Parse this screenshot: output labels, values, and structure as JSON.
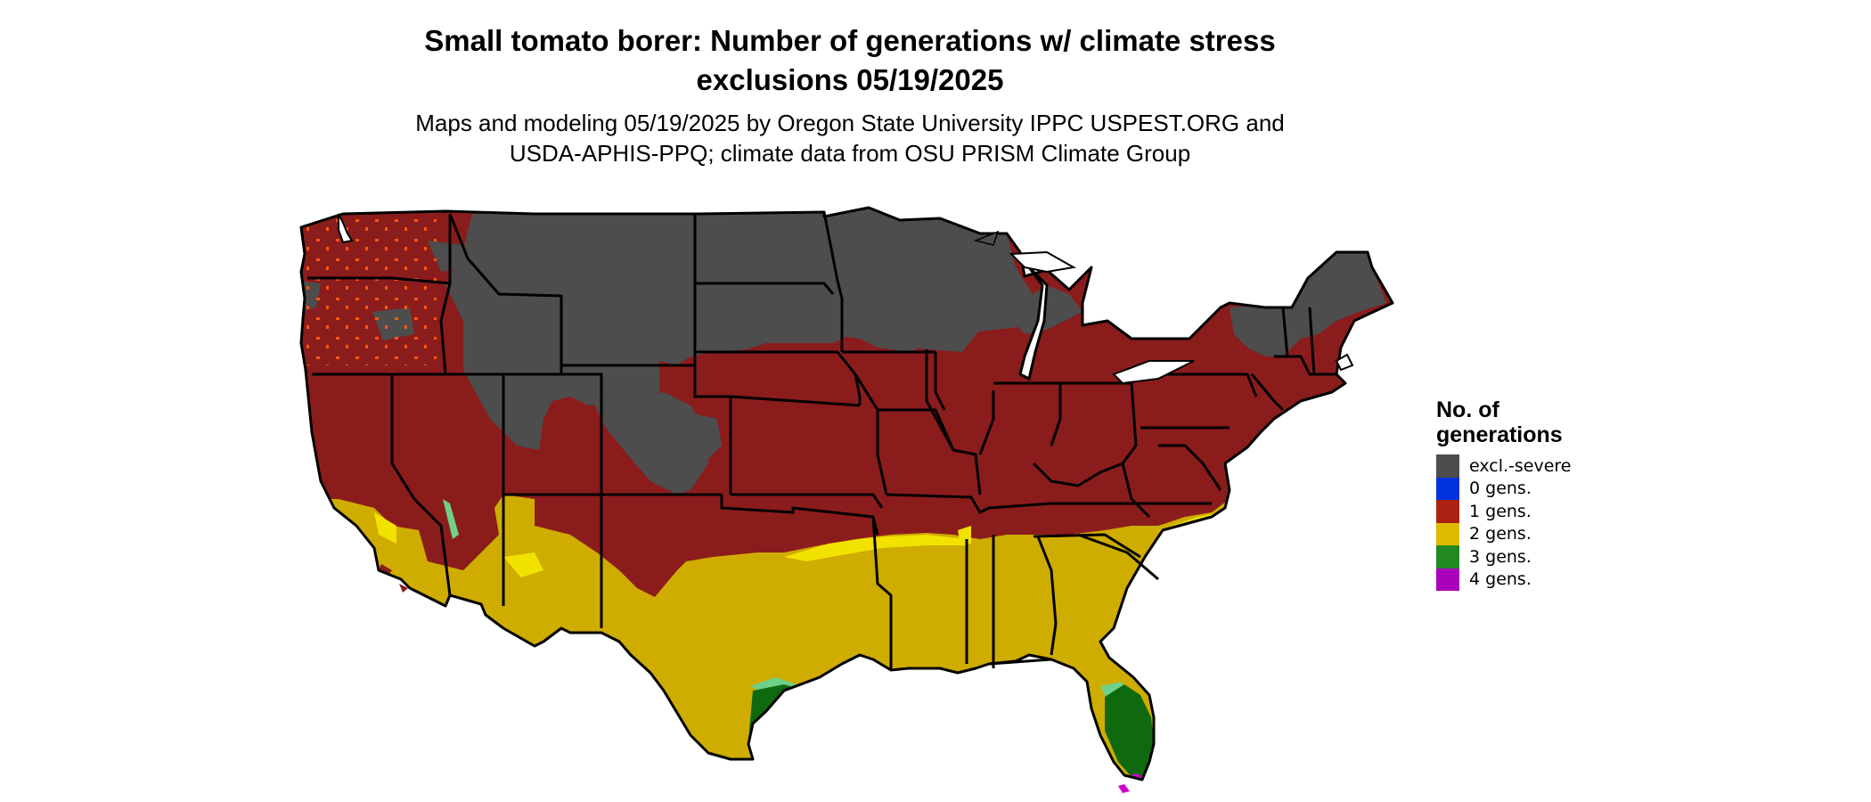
{
  "title": {
    "line1": "Small tomato borer: Number of generations w/ climate stress",
    "line2": "exclusions 05/19/2025"
  },
  "subtitle": {
    "line1": "Maps and modeling 05/19/2025 by Oregon State University IPPC USPEST.ORG and",
    "line2": "USDA-APHIS-PPQ; climate data from OSU PRISM Climate Group"
  },
  "legend": {
    "title_line1": "No. of",
    "title_line2": "generations",
    "items": [
      {
        "label": "excl.-severe",
        "color": "#4d4d4d"
      },
      {
        "label": "0 gens.",
        "color": "#0033dd"
      },
      {
        "label": "1 gens.",
        "color": "#aa2211"
      },
      {
        "label": "2 gens.",
        "color": "#ddbb00"
      },
      {
        "label": "3 gens.",
        "color": "#228822"
      },
      {
        "label": "4 gens.",
        "color": "#aa00bb"
      }
    ]
  },
  "map_colors": {
    "excluded": "#4d4d4d",
    "one_gen": "#8b1c1c",
    "two_gen": "#cfac00",
    "two_gen_bright": "#f1e200",
    "three_gen": "#0f6a0f",
    "three_gen_light": "#6fd08a",
    "four_gen": "#cc00cc",
    "fringe_orange": "#ff5511",
    "border": "#000000"
  }
}
